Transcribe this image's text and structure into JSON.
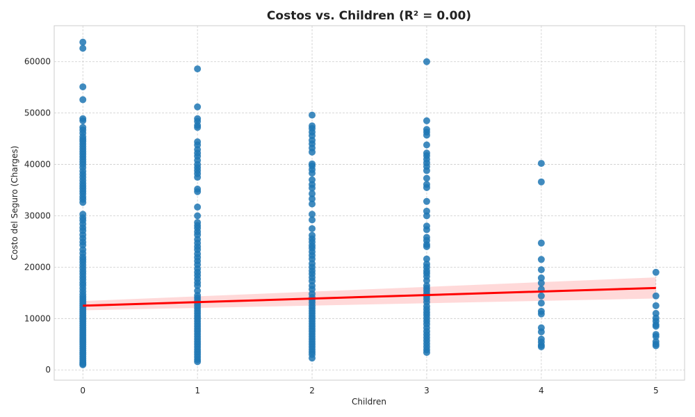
{
  "chart_data": {
    "type": "scatter",
    "title": "Costos vs. Children (R² = 0.00)",
    "xlabel": "Children",
    "ylabel": "Costo del Seguro (Charges)",
    "xlim": [
      -0.25,
      5.25
    ],
    "ylim": [
      -2000,
      67000
    ],
    "xticks": [
      0,
      1,
      2,
      3,
      4,
      5
    ],
    "yticks": [
      0,
      10000,
      20000,
      30000,
      40000,
      50000,
      60000
    ],
    "xtick_labels": [
      "0",
      "1",
      "2",
      "3",
      "4",
      "5"
    ],
    "ytick_labels": [
      "0",
      "10000",
      "20000",
      "30000",
      "40000",
      "50000",
      "60000"
    ],
    "grid": true,
    "point_color": "#1f77b4",
    "fit_color": "#ff0000",
    "series": [
      {
        "x": 0,
        "values": [
          63800,
          62600,
          55100,
          52600,
          48900,
          48500,
          47200,
          46700,
          46100,
          45400,
          44900,
          44500,
          44000,
          43500,
          43000,
          42500,
          42000,
          41500,
          41000,
          40500,
          40000,
          39400,
          38700,
          38100,
          37500,
          36900,
          36300,
          35800,
          35300,
          34800,
          34300,
          33700,
          33200,
          32600,
          30300,
          29600,
          29100,
          28400,
          27700,
          27100,
          26300,
          25600,
          24900,
          24300,
          23400,
          22700,
          22000,
          21500,
          21000,
          20400,
          19800,
          19200,
          18700,
          18100,
          17600,
          17000,
          16500,
          15900,
          15300,
          14700,
          14200,
          13800,
          13400,
          13000,
          12600,
          12200,
          11800,
          11400,
          11000,
          10600,
          10200,
          9800,
          9400,
          9000,
          8600,
          8200,
          7800,
          7400,
          7000,
          6600,
          6200,
          5800,
          5400,
          5000,
          4600,
          4200,
          3800,
          3400,
          3000,
          2600,
          2200,
          1800,
          1500,
          1200,
          1000
        ]
      },
      {
        "x": 1,
        "values": [
          58600,
          51200,
          48900,
          48400,
          47600,
          47200,
          44400,
          43800,
          42900,
          42200,
          41600,
          40800,
          40000,
          39400,
          38800,
          38200,
          37500,
          35200,
          34700,
          31700,
          30000,
          28700,
          28100,
          27600,
          26900,
          26300,
          25400,
          24700,
          24000,
          23400,
          22600,
          21900,
          21200,
          20500,
          19700,
          19000,
          18400,
          17700,
          17000,
          16400,
          15400,
          14500,
          14000,
          13500,
          13000,
          12500,
          12000,
          11500,
          11000,
          10500,
          10000,
          9500,
          9000,
          8500,
          8000,
          7500,
          7000,
          6500,
          6000,
          5500,
          5000,
          4500,
          4000,
          3500,
          3000,
          2500,
          2000,
          1600
        ]
      },
      {
        "x": 2,
        "values": [
          49600,
          47500,
          47000,
          46300,
          45600,
          44700,
          44000,
          43200,
          42400,
          40100,
          39700,
          39000,
          38300,
          37000,
          36100,
          35400,
          34300,
          33300,
          32300,
          30300,
          29200,
          27500,
          26200,
          25500,
          24900,
          24200,
          23700,
          23000,
          22300,
          21600,
          20700,
          20000,
          19300,
          18700,
          18000,
          17300,
          16400,
          15700,
          14800,
          14100,
          13600,
          13100,
          12500,
          12000,
          11500,
          11000,
          10500,
          10000,
          9500,
          9000,
          8500,
          8000,
          7500,
          7000,
          6500,
          6000,
          5500,
          5000,
          4500,
          4000,
          3500,
          3000,
          2300
        ]
      },
      {
        "x": 3,
        "values": [
          60000,
          48500,
          46800,
          46300,
          45700,
          43800,
          42200,
          41700,
          41000,
          40300,
          39600,
          38800,
          37300,
          36100,
          35500,
          32800,
          30900,
          30000,
          28000,
          27300,
          25800,
          25200,
          24400,
          24000,
          21600,
          20600,
          20000,
          19300,
          18800,
          18200,
          17400,
          16400,
          15900,
          15400,
          14800,
          14300,
          13800,
          13200,
          12400,
          11800,
          11200,
          10700,
          10100,
          9500,
          8900,
          8200,
          7500,
          6900,
          6300,
          5700,
          5100,
          4500,
          3900,
          3400
        ]
      },
      {
        "x": 4,
        "values": [
          40200,
          36600,
          24700,
          21500,
          19500,
          17900,
          16900,
          15700,
          14400,
          13000,
          11400,
          10900,
          8200,
          7400,
          6000,
          5400,
          4800,
          4500
        ]
      },
      {
        "x": 5,
        "values": [
          19000,
          14400,
          12500,
          11000,
          10100,
          9500,
          8800,
          8500,
          6900,
          6500,
          5500,
          5000,
          4700
        ]
      }
    ],
    "regression": {
      "x": [
        0,
        5
      ],
      "y": [
        12500,
        15950
      ],
      "ci_lower": [
        11600,
        13900
      ],
      "ci_upper": [
        13400,
        18000
      ]
    }
  }
}
